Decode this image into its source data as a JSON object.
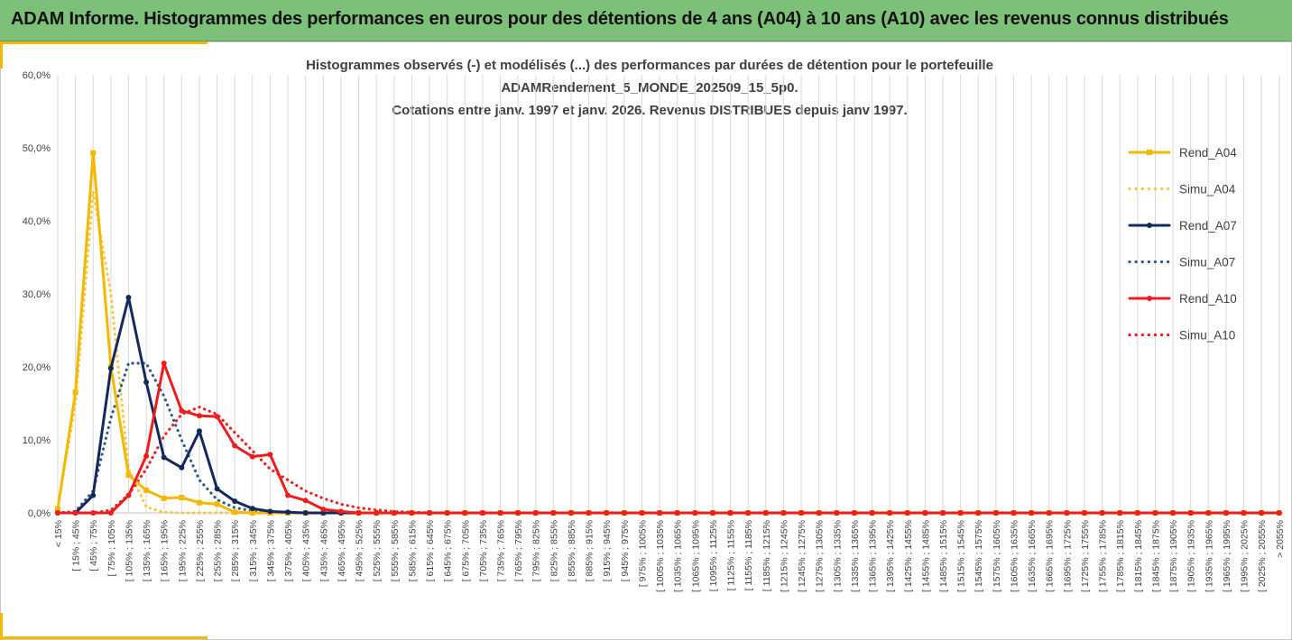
{
  "banner": {
    "title": "ADAM Informe. Histogrammes des performances en euros pour des détentions de 4 ans (A04) à 10 ans (A10) avec les revenus connus distribués"
  },
  "chart_data": {
    "type": "line",
    "title": [
      "Histogrammes observés (-) et modélisés (...) des performances par durées de détention pour le portefeuille",
      "ADAMRendement_5_MONDE_202509_15_5p0.",
      "Cotations entre janv. 1997 et janv. 2026. Revenus DISTRIBUES depuis janv 1997."
    ],
    "xlabel": "",
    "ylabel": "",
    "ylim": [
      0,
      0.6
    ],
    "yticks": [
      "0,0%",
      "10,0%",
      "20,0%",
      "30,0%",
      "40,0%",
      "50,0%",
      "60,0%"
    ],
    "grid": "vertical",
    "legend_position": "right",
    "categories": [
      "< 15%",
      "[ 15% ; 45%",
      "[ 45% ; 75%",
      "[ 75% ; 105%",
      "[ 105% ; 135%",
      "[ 135% ; 165%",
      "[ 165% ; 195%",
      "[ 195% ; 225%",
      "[ 225% ; 255%",
      "[ 255% ; 285%",
      "[ 285% ; 315%",
      "[ 315% ; 345%",
      "[ 345% ; 375%",
      "[ 375% ; 405%",
      "[ 405% ; 435%",
      "[ 435% ; 465%",
      "[ 465% ; 495%",
      "[ 495% ; 525%",
      "[ 525% ; 555%",
      "[ 555% ; 585%",
      "[ 585% ; 615%",
      "[ 615% ; 645%",
      "[ 645% ; 675%",
      "[ 675% ; 705%",
      "[ 705% ; 735%",
      "[ 735% ; 765%",
      "[ 765% ; 795%",
      "[ 795% ; 825%",
      "[ 825% ; 855%",
      "[ 855% ; 885%",
      "[ 885% ; 915%",
      "[ 915% ; 945%",
      "[ 945% ; 975%",
      "[ 975% ; 1005%",
      "[ 1005% ; 1035%",
      "[ 1035% ; 1065%",
      "[ 1065% ; 1095%",
      "[ 1095% ; 1125%",
      "[ 1125% ; 1155%",
      "[ 1155% ; 1185%",
      "[ 1185% ; 1215%",
      "[ 1215% ; 1245%",
      "[ 1245% ; 1275%",
      "[ 1275% ; 1305%",
      "[ 1305% ; 1335%",
      "[ 1335% ; 1365%",
      "[ 1365% ; 1395%",
      "[ 1395% ; 1425%",
      "[ 1425% ; 1455%",
      "[ 1455% ; 1485%",
      "[ 1485% ; 1515%",
      "[ 1515% ; 1545%",
      "[ 1545% ; 1575%",
      "[ 1575% ; 1605%",
      "[ 1605% ; 1635%",
      "[ 1635% ; 1665%",
      "[ 1665% ; 1695%",
      "[ 1695% ; 1725%",
      "[ 1725% ; 1755%",
      "[ 1755% ; 1785%",
      "[ 1785% ; 1815%",
      "[ 1815% ; 1845%",
      "[ 1845% ; 1875%",
      "[ 1875% ; 1905%",
      "[ 1905% ; 1935%",
      "[ 1935% ; 1965%",
      "[ 1965% ; 1995%",
      "[ 1995% ; 2025%",
      "[ 2025% ; 2055%",
      "> 2055%"
    ],
    "series": [
      {
        "name": "Rend_A04",
        "color": "#f5b800",
        "style": "solid",
        "marker": "square",
        "values": [
          0.005,
          0.165,
          0.493,
          0.2,
          0.052,
          0.031,
          0.02,
          0.021,
          0.014,
          0.012,
          0.001,
          0,
          0,
          0,
          0,
          0,
          0,
          0,
          0,
          0,
          0,
          0,
          0,
          0,
          0,
          0,
          0,
          0,
          0,
          0,
          0,
          0,
          0,
          0,
          0,
          0,
          0,
          0,
          0,
          0,
          0,
          0,
          0,
          0,
          0,
          0,
          0,
          0,
          0,
          0,
          0,
          0,
          0,
          0,
          0,
          0,
          0,
          0,
          0,
          0,
          0,
          0,
          0,
          0,
          0,
          0,
          0,
          0,
          0,
          0
        ]
      },
      {
        "name": "Simu_A04",
        "color": "#f5c842",
        "style": "dotted",
        "marker": "none",
        "values": [
          0.008,
          0.15,
          0.44,
          0.3,
          0.06,
          0.008,
          0.001,
          0,
          0,
          0,
          0,
          0,
          0,
          0,
          0,
          0,
          0,
          0,
          0,
          0,
          0,
          0,
          0,
          0,
          0,
          0,
          0,
          0,
          0,
          0,
          0,
          0,
          0,
          0,
          0,
          0,
          0,
          0,
          0,
          0,
          0,
          0,
          0,
          0,
          0,
          0,
          0,
          0,
          0,
          0,
          0,
          0,
          0,
          0,
          0,
          0,
          0,
          0,
          0,
          0,
          0,
          0,
          0,
          0,
          0,
          0,
          0,
          0,
          0,
          0
        ]
      },
      {
        "name": "Rend_A07",
        "color": "#13295e",
        "style": "solid",
        "marker": "circle",
        "values": [
          0,
          0,
          0.024,
          0.198,
          0.295,
          0.179,
          0.076,
          0.062,
          0.112,
          0.033,
          0.016,
          0.006,
          0.002,
          0.001,
          0,
          0,
          0,
          0,
          0,
          0,
          0,
          0,
          0,
          0,
          0,
          0,
          0,
          0,
          0,
          0,
          0,
          0,
          0,
          0,
          0,
          0,
          0,
          0,
          0,
          0,
          0,
          0,
          0,
          0,
          0,
          0,
          0,
          0,
          0,
          0,
          0,
          0,
          0,
          0,
          0,
          0,
          0,
          0,
          0,
          0,
          0,
          0,
          0,
          0,
          0,
          0,
          0,
          0,
          0,
          0
        ]
      },
      {
        "name": "Simu_A07",
        "color": "#2e5a8a",
        "style": "dotted",
        "marker": "none",
        "values": [
          0,
          0.002,
          0.03,
          0.13,
          0.205,
          0.205,
          0.16,
          0.1,
          0.045,
          0.018,
          0.007,
          0.003,
          0.001,
          0,
          0,
          0,
          0,
          0,
          0,
          0,
          0,
          0,
          0,
          0,
          0,
          0,
          0,
          0,
          0,
          0,
          0,
          0,
          0,
          0,
          0,
          0,
          0,
          0,
          0,
          0,
          0,
          0,
          0,
          0,
          0,
          0,
          0,
          0,
          0,
          0,
          0,
          0,
          0,
          0,
          0,
          0,
          0,
          0,
          0,
          0,
          0,
          0,
          0,
          0,
          0,
          0,
          0,
          0,
          0,
          0
        ]
      },
      {
        "name": "Rend_A10",
        "color": "#ee1c1c",
        "style": "solid",
        "marker": "circle",
        "values": [
          0,
          0,
          0,
          0,
          0.024,
          0.078,
          0.205,
          0.14,
          0.133,
          0.132,
          0.092,
          0.077,
          0.08,
          0.024,
          0.017,
          0.005,
          0.002,
          0,
          0,
          0,
          0,
          0,
          0,
          0,
          0,
          0,
          0,
          0,
          0,
          0,
          0,
          0,
          0,
          0,
          0,
          0,
          0,
          0,
          0,
          0,
          0,
          0,
          0,
          0,
          0,
          0,
          0,
          0,
          0,
          0,
          0,
          0,
          0,
          0,
          0,
          0,
          0,
          0,
          0,
          0,
          0,
          0,
          0,
          0,
          0,
          0,
          0,
          0,
          0,
          0
        ]
      },
      {
        "name": "Simu_A10",
        "color": "#ee1c1c",
        "style": "dotted",
        "marker": "none",
        "values": [
          0,
          0,
          0,
          0.004,
          0.025,
          0.06,
          0.105,
          0.135,
          0.145,
          0.135,
          0.11,
          0.085,
          0.06,
          0.045,
          0.03,
          0.02,
          0.012,
          0.007,
          0.004,
          0.002,
          0.001,
          0,
          0,
          0,
          0,
          0,
          0,
          0,
          0,
          0,
          0,
          0,
          0,
          0,
          0,
          0,
          0,
          0,
          0,
          0,
          0,
          0,
          0,
          0,
          0,
          0,
          0,
          0,
          0,
          0,
          0,
          0,
          0,
          0,
          0,
          0,
          0,
          0,
          0,
          0,
          0,
          0,
          0,
          0,
          0,
          0,
          0,
          0,
          0,
          0
        ]
      }
    ]
  }
}
